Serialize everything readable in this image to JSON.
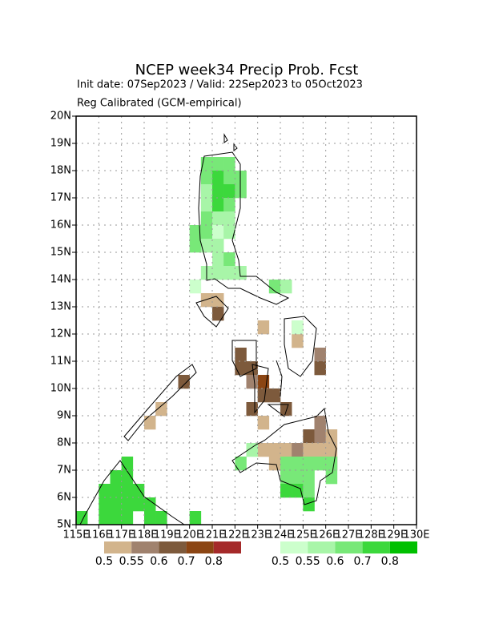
{
  "chart_data": {
    "type": "map",
    "title": "NCEP week34 Precip Prob. Fcst",
    "subtitle": "Init date: 07Sep2023 / Valid: 22Sep2023 to 05Oct2023",
    "subtitle2": "Reg Calibrated (GCM-empirical)",
    "xlim": [
      115,
      130
    ],
    "ylim": [
      5,
      20
    ],
    "grid": true,
    "xticks": [
      {
        "value": 115,
        "label": "115E"
      },
      {
        "value": 116,
        "label": "116E"
      },
      {
        "value": 117,
        "label": "117E"
      },
      {
        "value": 118,
        "label": "118E"
      },
      {
        "value": 119,
        "label": "119E"
      },
      {
        "value": 120,
        "label": "120E"
      },
      {
        "value": 121,
        "label": "121E"
      },
      {
        "value": 122,
        "label": "122E"
      },
      {
        "value": 123,
        "label": "123E"
      },
      {
        "value": 124,
        "label": "124E"
      },
      {
        "value": 125,
        "label": "125E"
      },
      {
        "value": 126,
        "label": "126E"
      },
      {
        "value": 127,
        "label": "127E"
      },
      {
        "value": 128,
        "label": "128E"
      },
      {
        "value": 129,
        "label": "129E"
      },
      {
        "value": 130,
        "label": "130E"
      }
    ],
    "yticks": [
      {
        "value": 5,
        "label": "5N"
      },
      {
        "value": 6,
        "label": "6N"
      },
      {
        "value": 7,
        "label": "7N"
      },
      {
        "value": 8,
        "label": "8N"
      },
      {
        "value": 9,
        "label": "9N"
      },
      {
        "value": 10,
        "label": "10N"
      },
      {
        "value": 11,
        "label": "11N"
      },
      {
        "value": 12,
        "label": "12N"
      },
      {
        "value": 13,
        "label": "13N"
      },
      {
        "value": 14,
        "label": "14N"
      },
      {
        "value": 15,
        "label": "15N"
      },
      {
        "value": 16,
        "label": "16N"
      },
      {
        "value": 17,
        "label": "17N"
      },
      {
        "value": 18,
        "label": "18N"
      },
      {
        "value": 19,
        "label": "19N"
      },
      {
        "value": 20,
        "label": "20N"
      }
    ],
    "layers": [
      {
        "colors": [
          "#d2b48c",
          "#a0826e",
          "#7d5a3c",
          "#8b4513",
          "#a52a2a"
        ],
        "levels": [
          0.5,
          0.55,
          0.6,
          0.7,
          0.8
        ],
        "lon": [
          120.5,
          121,
          121,
          123,
          124.5,
          122,
          122,
          122.5,
          123,
          122.5,
          123,
          123.5,
          122.5,
          124,
          123,
          124.5,
          125.5,
          125.5,
          125.5,
          125,
          125.5,
          126,
          123,
          123.5,
          124,
          124.5,
          125,
          125.5,
          126,
          123.5,
          124,
          126,
          119.5,
          118.5,
          118
        ],
        "lat": [
          13,
          13,
          12.5,
          12,
          12,
          11,
          10.5,
          10.5,
          10,
          10,
          9.5,
          9.5,
          9,
          9,
          8.5,
          11.5,
          11,
          10.5,
          8.5,
          8,
          8,
          8,
          7.5,
          7.5,
          7.5,
          7.5,
          7.5,
          7.5,
          7.5,
          7,
          7,
          7,
          10,
          9,
          8.5
        ],
        "values": [
          0.5,
          0.5,
          0.6,
          0.5,
          0.5,
          0.6,
          0.6,
          0.6,
          0.7,
          0.55,
          0.6,
          0.6,
          0.6,
          0.6,
          0.5,
          0.5,
          0.55,
          0.6,
          0.55,
          0.6,
          0.55,
          0.5,
          0.5,
          0.5,
          0.5,
          0.55,
          0.5,
          0.5,
          0.5,
          0.5,
          0.5,
          0.6,
          0.6,
          0.5,
          0.5
        ]
      },
      {
        "colors": [
          "#ccffcc",
          "#a8f5a8",
          "#78e878",
          "#3cd83c",
          "#00c000"
        ],
        "levels": [
          0.5,
          0.55,
          0.6,
          0.7,
          0.8
        ],
        "lon": [
          120.5,
          121,
          121.5,
          120.5,
          121,
          121.5,
          122,
          120.5,
          121,
          121.5,
          122,
          120.5,
          121,
          121.5,
          120.5,
          121,
          121.5,
          120,
          120.5,
          121,
          121.5,
          120,
          120.5,
          121,
          121,
          121.5,
          120.5,
          121,
          121.5,
          122,
          120,
          123.5,
          124,
          124.5,
          122,
          124,
          124.5,
          125,
          125.5,
          126,
          124,
          124.5,
          125,
          126,
          124,
          124.5,
          125,
          125,
          122.5,
          117,
          116.5,
          117,
          116,
          116.5,
          117,
          117.5,
          116,
          116.5,
          117,
          117.5,
          118,
          115,
          116,
          116.5,
          117,
          118,
          118.5,
          120
        ],
        "lat": [
          18,
          18,
          18,
          17.5,
          17.5,
          17.5,
          17.5,
          17,
          17,
          17,
          17,
          16.5,
          16.5,
          16.5,
          16,
          16,
          16,
          15.5,
          15.5,
          15.5,
          15.5,
          15,
          15,
          15,
          14.5,
          14.5,
          14,
          14,
          14,
          14,
          13.5,
          13.5,
          13.5,
          12,
          7,
          7,
          7,
          7,
          7,
          7,
          6.5,
          6.5,
          6.5,
          6.5,
          6,
          6,
          6,
          5.5,
          7.5,
          7,
          6.5,
          6.5,
          6,
          6,
          6,
          6,
          5.5,
          5.5,
          5.5,
          5.5,
          5.5,
          5,
          5,
          5,
          5,
          5,
          5,
          5
        ],
        "values": [
          0.6,
          0.6,
          0.6,
          0.6,
          0.7,
          0.6,
          0.6,
          0.55,
          0.7,
          0.7,
          0.6,
          0.55,
          0.7,
          0.6,
          0.6,
          0.55,
          0.55,
          0.6,
          0.6,
          0.5,
          0.55,
          0.6,
          0.55,
          0.55,
          0.55,
          0.6,
          0.55,
          0.55,
          0.55,
          0.55,
          0.5,
          0.6,
          0.55,
          0.5,
          0.6,
          0.6,
          0.6,
          0.6,
          0.6,
          0.6,
          0.6,
          0.6,
          0.6,
          0.6,
          0.7,
          0.7,
          0.6,
          0.7,
          0.55,
          0.7,
          0.7,
          0.7,
          0.7,
          0.7,
          0.7,
          0.7,
          0.7,
          0.7,
          0.7,
          0.7,
          0.7,
          0.7,
          0.7,
          0.7,
          0.7,
          0.7,
          0.7,
          0.7
        ]
      }
    ]
  }
}
